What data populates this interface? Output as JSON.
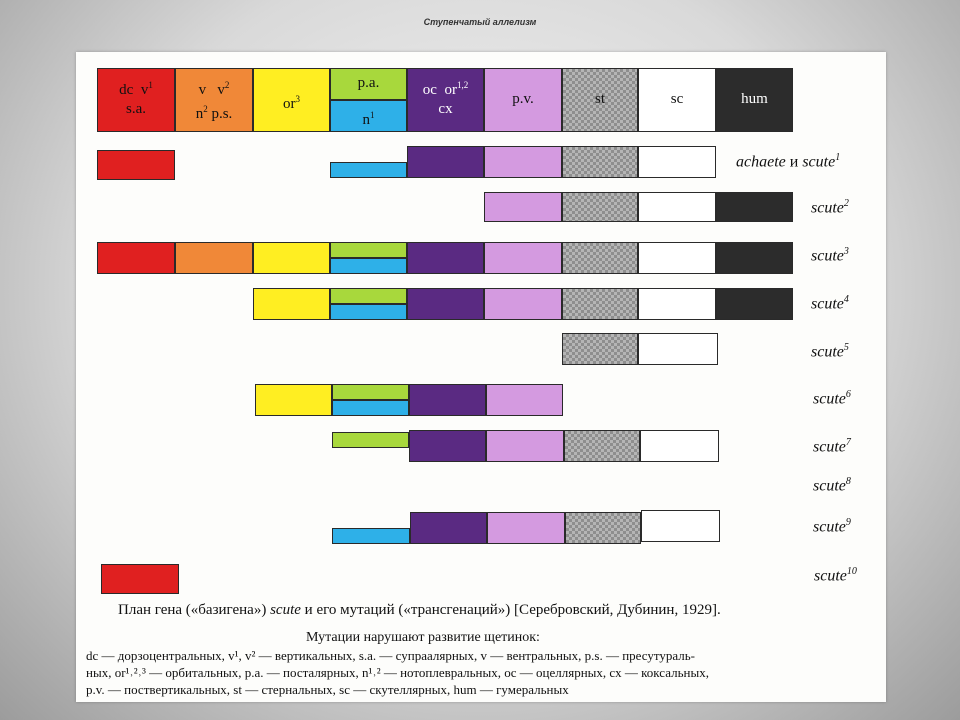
{
  "slide_title": "Ступенчатый аллелизм",
  "header_labels": {
    "dc": "dc",
    "v1": "v",
    "v1_sup": "1",
    "sa": "s.a.",
    "v": "v",
    "v2": "v",
    "v2_sup": "2",
    "n2": "n",
    "n2_sup": "2",
    "ps": "p.s.",
    "or3": "or",
    "or3_sup": "3",
    "pa": "p.a.",
    "n1": "n",
    "n1_sup": "1",
    "oc": "oc",
    "or12": "or",
    "or12_sup": "1,2",
    "cx": "cx",
    "pv": "p.v.",
    "st": "st",
    "sc": "sc",
    "hum": "hum"
  },
  "rows": [
    {
      "name": "achaete",
      "conj": " и ",
      "name2": "scute",
      "sup": "1"
    },
    {
      "name": "scute",
      "sup": "2"
    },
    {
      "name": "scute",
      "sup": "3"
    },
    {
      "name": "scute",
      "sup": "4"
    },
    {
      "name": "scute",
      "sup": "5"
    },
    {
      "name": "scute",
      "sup": "6"
    },
    {
      "name": "scute",
      "sup": "7"
    },
    {
      "name": "scute",
      "sup": "8"
    },
    {
      "name": "scute",
      "sup": "9"
    },
    {
      "name": "scute",
      "sup": "10"
    }
  ],
  "caption": {
    "part1": "План гена («базигена») ",
    "italic": "scute",
    "part2": " и его мутаций («трансгенаций») [Серебровский, Дубинин, 1929]."
  },
  "sub_caption": "Мутации нарушают развитие щетинок:",
  "legend_lines": [
    "dc — дорзоцентральных, v¹, v² — вертикальных, s.a. — супраалярных, v — вентральных, p.s. — пресутураль-",
    "ных, or¹˒²˒³ — орбитальных, p.a. — посталярных, n¹˒² — нотоплевральных, oc — оцеллярных, cx — коксальных,",
    "p.v. — поствертикальных, st — стернальных, sc — скутеллярных, hum — гумеральных"
  ]
}
